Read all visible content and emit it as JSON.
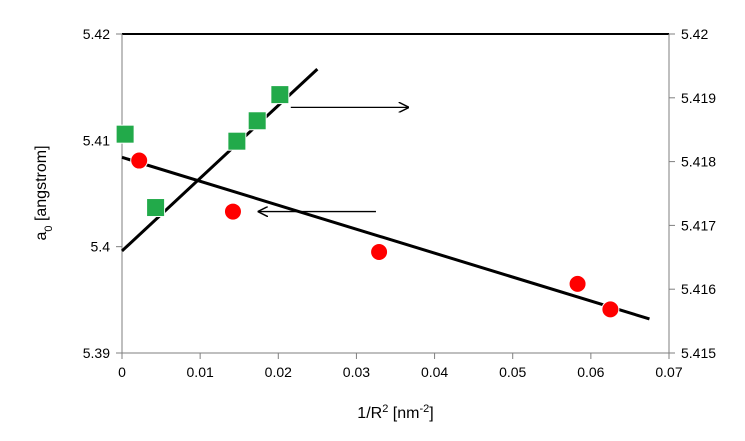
{
  "chart_data": {
    "type": "scatter",
    "title": "",
    "xlabel_parts": {
      "base": "1/R",
      "superscript": "2",
      "unit_open": " [nm",
      "unit_superscript": "-2",
      "unit_close": "]"
    },
    "ylabel_parts": {
      "prefix": "a",
      "subscript": "0",
      "suffix": " [angstrom]"
    },
    "xlim": [
      0,
      0.07
    ],
    "ylim_left": [
      5.39,
      5.42
    ],
    "ylim_right": [
      5.415,
      5.42
    ],
    "x_ticks": [
      "0",
      "0.01",
      "0.02",
      "0.03",
      "0.04",
      "0.05",
      "0.06",
      "0.07"
    ],
    "y_ticks_left": [
      "5.39",
      "5.4",
      "5.41",
      "5.42"
    ],
    "y_ticks_right": [
      "5.415",
      "5.416",
      "5.417",
      "5.418",
      "5.419",
      "5.42"
    ],
    "grid": false,
    "legend": "none",
    "series": [
      {
        "axis": "left",
        "marker": "circle",
        "color": "#ff0000",
        "x": [
          0.0005,
          0.0022,
          0.0142,
          0.0329,
          0.0583,
          0.0625
        ],
        "y": [
          5.4105,
          5.4081,
          5.4033,
          5.3995,
          5.3965,
          5.3941
        ]
      },
      {
        "axis": "right",
        "marker": "square",
        "color": "#22aa4a",
        "x": [
          0.0004,
          0.0043,
          0.0147,
          0.0173,
          0.0202
        ],
        "y": [
          5.41843,
          5.41728,
          5.41832,
          5.41864,
          5.41905
        ]
      }
    ],
    "fit_lines": [
      {
        "axis": "left",
        "color": "#000000",
        "x": [
          0.0,
          0.0675
        ],
        "y": [
          5.4084,
          5.3932
        ]
      },
      {
        "axis": "right",
        "color": "#000000",
        "x": [
          0.0,
          0.025
        ],
        "y": [
          5.4166,
          5.41945
        ]
      }
    ],
    "annotations": [
      {
        "type": "arrow",
        "direction": "right",
        "color": "#000000",
        "x1": 0.0216,
        "x2": 0.0366,
        "y": 5.41885,
        "axis": "right"
      },
      {
        "type": "arrow",
        "direction": "left",
        "color": "#000000",
        "x1": 0.0325,
        "x2": 0.0175,
        "y": 5.4033,
        "axis": "left"
      }
    ]
  }
}
